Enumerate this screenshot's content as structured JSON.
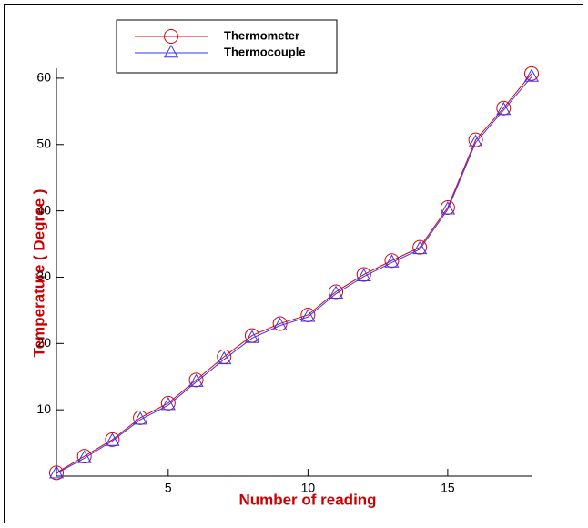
{
  "chart_data": {
    "type": "line",
    "x_label": "Number of reading",
    "y_label": "Temperature ( Degree )",
    "x": [
      1,
      2,
      3,
      4,
      5,
      6,
      7,
      8,
      9,
      10,
      11,
      12,
      13,
      14,
      15,
      16,
      17,
      18
    ],
    "series": [
      {
        "name": "Thermometer",
        "color": "#dd0000",
        "marker": "circle",
        "values": [
          0.5,
          3,
          5.5,
          8.8,
          11,
          14.5,
          18,
          21.2,
          23,
          24.3,
          27.8,
          30.4,
          32.5,
          34.5,
          40.5,
          50.7,
          55.5,
          60.7
        ]
      },
      {
        "name": "Thermocouple",
        "color": "#3333ff",
        "marker": "triangle",
        "values": [
          0.4,
          2.7,
          5.3,
          8.5,
          10.7,
          14.2,
          17.6,
          20.8,
          22.7,
          24,
          27.5,
          30.1,
          32.2,
          34.2,
          40.2,
          50.3,
          55.2,
          60.2
        ]
      }
    ],
    "xlim": [
      1,
      18
    ],
    "xticks": [
      5,
      10,
      15
    ],
    "ylim": [
      0,
      61.5
    ],
    "yticks": [
      10,
      20,
      30,
      40,
      50,
      60
    ],
    "legend": "top-left"
  }
}
